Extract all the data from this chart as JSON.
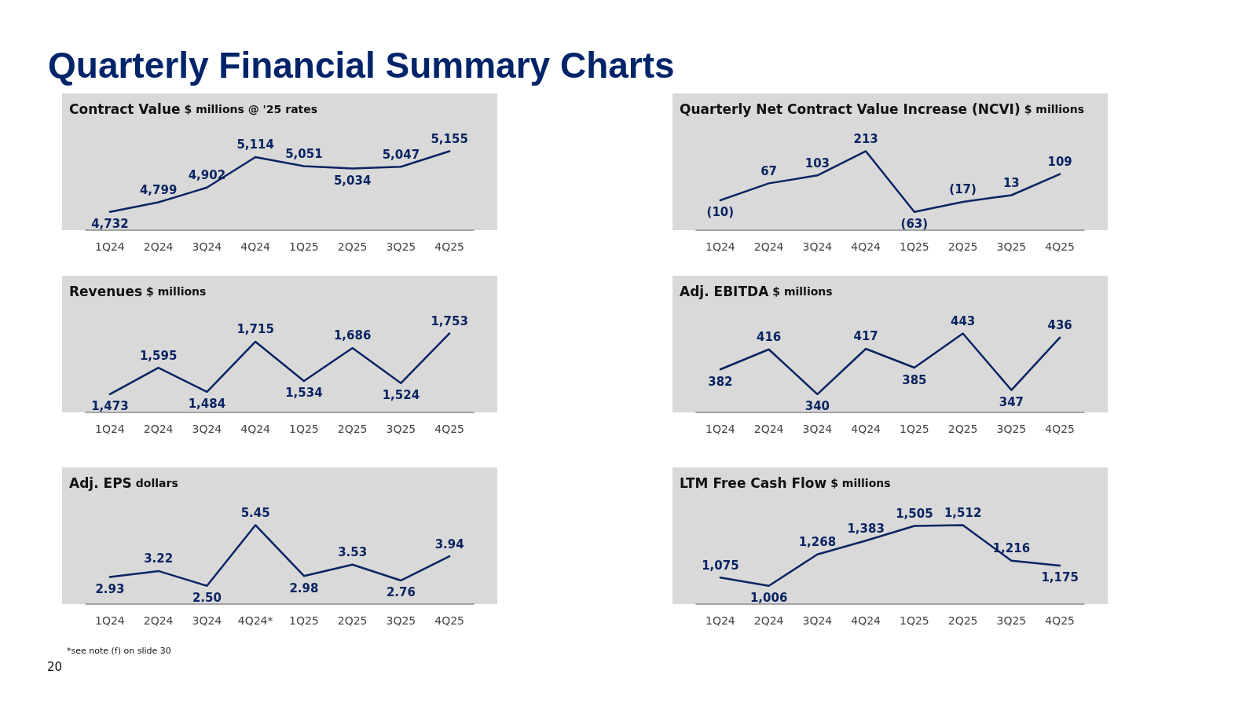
{
  "chart_data": [
    {
      "type": "line",
      "title": "Contract Value",
      "subtitle": "$ millions @ '25 rates",
      "annotations": [
        "Quarterly Financial Summary Charts"
      ],
      "categories": [
        "1Q24",
        "2Q24",
        "3Q24",
        "4Q24",
        "1Q25",
        "2Q25",
        "3Q25",
        "4Q25"
      ],
      "values": [
        4732,
        4799,
        4902,
        5114,
        5051,
        5034,
        5047,
        5155
      ],
      "value_labels": [
        "4,732",
        "4,799",
        "4,902",
        "5,114",
        "5,051",
        "5,034",
        "5,047",
        "5,155"
      ],
      "color": "#0a2463",
      "marker": "none",
      "grid": false
    },
    {
      "type": "line",
      "title": "Quarterly Net Contract Value Increase (NCVI)",
      "subtitle": "$ millions",
      "categories": [
        "1Q24",
        "2Q24",
        "3Q24",
        "4Q24",
        "1Q25",
        "2Q25",
        "3Q25",
        "4Q25"
      ],
      "values": [
        -10,
        67,
        103,
        213,
        -63,
        -17,
        13,
        109
      ],
      "value_labels": [
        "(10)",
        "67",
        "103",
        "213",
        "(63)",
        "(17)",
        "13",
        "109"
      ],
      "color": "#0a2463",
      "marker": "none",
      "grid": false
    },
    {
      "type": "line",
      "title": "Revenues",
      "subtitle": "$ millions",
      "categories": [
        "1Q24",
        "2Q24",
        "3Q24",
        "4Q24",
        "1Q25",
        "2Q25",
        "3Q25",
        "4Q25"
      ],
      "values": [
        1473,
        1595,
        1484,
        1715,
        1534,
        1686,
        1524,
        1753
      ],
      "value_labels": [
        "1,473",
        "1,595",
        "1,484",
        "1,715",
        "1,534",
        "1,686",
        "1,524",
        "1,753"
      ],
      "color": "#0a2463",
      "marker": "none",
      "grid": false
    },
    {
      "type": "line",
      "title": "Adj. EBITDA",
      "subtitle": "$ millions",
      "categories": [
        "1Q24",
        "2Q24",
        "3Q24",
        "4Q24",
        "1Q25",
        "2Q25",
        "3Q25",
        "4Q25"
      ],
      "values": [
        382,
        416,
        340,
        417,
        385,
        443,
        347,
        436
      ],
      "value_labels": [
        "382",
        "416",
        "340",
        "417",
        "385",
        "443",
        "347",
        "436"
      ],
      "color": "#0a2463",
      "marker": "none",
      "grid": false
    },
    {
      "type": "line",
      "title": "Adj. EPS",
      "subtitle": "dollars",
      "annotations": [
        "*see note (f) on slide 30",
        "20"
      ],
      "categories": [
        "1Q24",
        "2Q24",
        "3Q24",
        "4Q24*",
        "1Q25",
        "2Q25",
        "3Q25",
        "4Q25"
      ],
      "values": [
        2.93,
        3.22,
        2.5,
        5.45,
        2.98,
        3.53,
        2.76,
        3.94
      ],
      "value_labels": [
        "2.93",
        "3.22",
        "2.50",
        "5.45",
        "2.98",
        "3.53",
        "2.76",
        "3.94"
      ],
      "color": "#0a2463",
      "marker": "none",
      "grid": false
    },
    {
      "type": "line",
      "title": "LTM Free Cash Flow",
      "subtitle": "$ millions",
      "categories": [
        "1Q24",
        "2Q24",
        "3Q24",
        "4Q24",
        "1Q25",
        "2Q25",
        "3Q25",
        "4Q25"
      ],
      "values": [
        1075,
        1006,
        1268,
        1383,
        1505,
        1512,
        1216,
        1175
      ],
      "value_labels": [
        "1,075",
        "1,006",
        "1,268",
        "1,383",
        "1,505",
        "1,512",
        "1,216",
        "1,175"
      ],
      "color": "#0a2463",
      "marker": "none",
      "grid": false
    }
  ]
}
